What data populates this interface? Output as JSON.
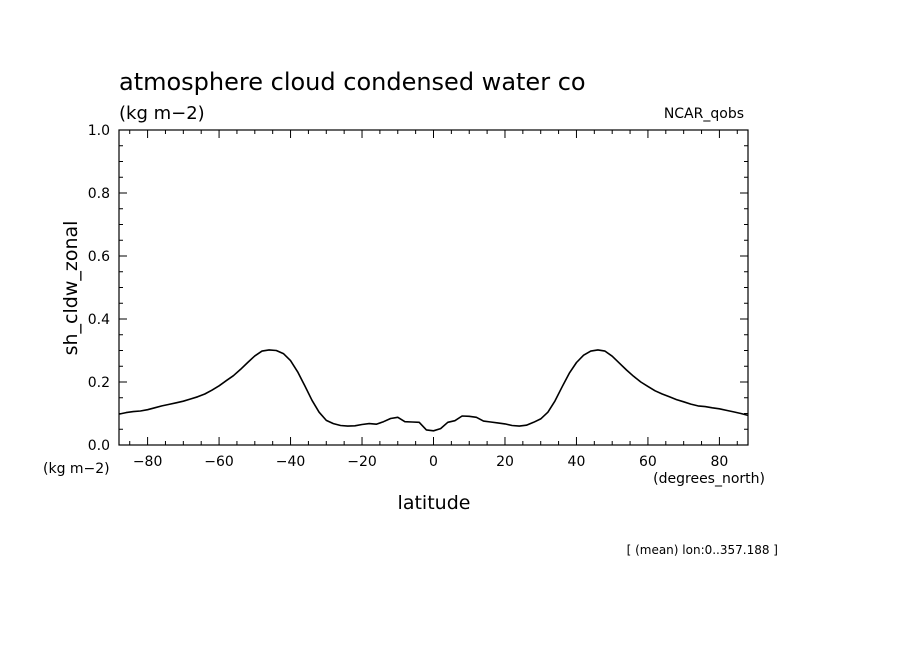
{
  "chart_data": {
    "type": "line",
    "title": "atmosphere cloud condensed water co",
    "units": "(kg m−2)",
    "source_label": "NCAR_qobs",
    "ylabel": "sh_cldw_zonal",
    "ylabel_units": "(kg m−2)",
    "xlabel": "latitude",
    "xlabel_units": "(degrees_north)",
    "footnote": "[ (mean) lon:0..357.188 ]",
    "xlim": [
      -88,
      88
    ],
    "ylim": [
      0,
      1.0
    ],
    "x_ticks": [
      -80,
      -60,
      -40,
      -20,
      0,
      20,
      40,
      60,
      80
    ],
    "x_tick_labels": [
      "−80",
      "−60",
      "−40",
      "−20",
      "0",
      "20",
      "40",
      "60",
      "80"
    ],
    "y_ticks": [
      0,
      0.2,
      0.4,
      0.6,
      0.8,
      1.0
    ],
    "y_tick_labels": [
      "0.0",
      "0.2",
      "0.4",
      "0.6",
      "0.8",
      "1.0"
    ],
    "grid": false,
    "series": [
      {
        "x": [
          -88,
          -86,
          -84,
          -82,
          -80,
          -78,
          -76,
          -74,
          -72,
          -70,
          -68,
          -66,
          -64,
          -62,
          -60,
          -58,
          -56,
          -54,
          -52,
          -50,
          -48,
          -46,
          -44,
          -42,
          -40,
          -38,
          -36,
          -34,
          -32,
          -30,
          -28,
          -26,
          -24,
          -22,
          -20,
          -18,
          -16,
          -14,
          -12,
          -10,
          -8,
          -6,
          -4,
          -2,
          0,
          2,
          4,
          6,
          8,
          10,
          12,
          14,
          16,
          18,
          20,
          22,
          24,
          26,
          28,
          30,
          32,
          34,
          36,
          38,
          40,
          42,
          44,
          46,
          48,
          50,
          52,
          54,
          56,
          58,
          60,
          62,
          64,
          66,
          68,
          70,
          72,
          74,
          76,
          78,
          80,
          82,
          84,
          86,
          88
        ],
        "values": [
          0.098,
          0.103,
          0.106,
          0.108,
          0.112,
          0.118,
          0.124,
          0.129,
          0.134,
          0.139,
          0.146,
          0.153,
          0.162,
          0.174,
          0.188,
          0.204,
          0.22,
          0.24,
          0.262,
          0.283,
          0.298,
          0.302,
          0.3,
          0.29,
          0.268,
          0.232,
          0.188,
          0.142,
          0.104,
          0.078,
          0.068,
          0.062,
          0.06,
          0.061,
          0.065,
          0.068,
          0.066,
          0.074,
          0.084,
          0.088,
          0.074,
          0.073,
          0.072,
          0.048,
          0.045,
          0.052,
          0.072,
          0.077,
          0.092,
          0.091,
          0.088,
          0.076,
          0.073,
          0.07,
          0.067,
          0.062,
          0.06,
          0.063,
          0.072,
          0.083,
          0.104,
          0.14,
          0.185,
          0.228,
          0.262,
          0.285,
          0.298,
          0.302,
          0.298,
          0.282,
          0.26,
          0.238,
          0.218,
          0.2,
          0.186,
          0.172,
          0.162,
          0.153,
          0.144,
          0.137,
          0.13,
          0.124,
          0.122,
          0.118,
          0.115,
          0.11,
          0.105,
          0.1,
          0.094
        ]
      }
    ]
  }
}
